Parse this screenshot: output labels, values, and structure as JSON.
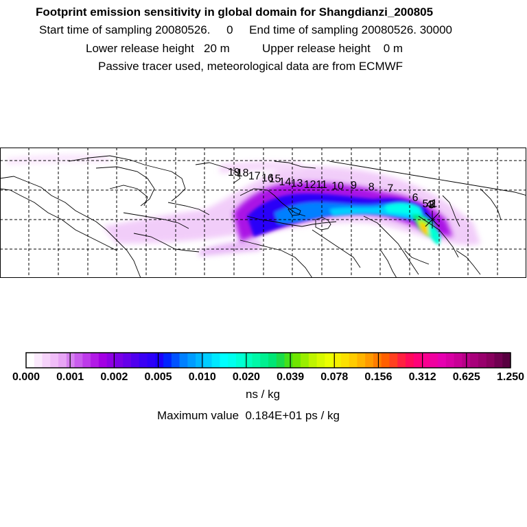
{
  "header": {
    "title": "Footprint emission sensitivity in global domain for Shangdianzi_200805",
    "line1": "Start time of sampling 20080526.     0     End time of sampling 20080526. 30000",
    "line2": "Lower release height   20 m          Upper release height    0 m",
    "line3": "Passive tracer used, meteorological data are from ECMWF"
  },
  "map": {
    "lon_range": [
      -180,
      180
    ],
    "lat_range": [
      -10,
      80
    ],
    "grid_lines": true,
    "grid_style": "dashed",
    "release_site": "Shangdianzi",
    "track_labels": [
      {
        "text": "1",
        "lon": 117.0,
        "lat": 39.0
      },
      {
        "text": "2",
        "lon": 116.0,
        "lat": 38.5
      },
      {
        "text": "3",
        "lon": 115.0,
        "lat": 38.0
      },
      {
        "text": "4",
        "lon": 113.5,
        "lat": 38.3
      },
      {
        "text": "5",
        "lon": 111.0,
        "lat": 38.8
      },
      {
        "text": "6",
        "lon": 104.0,
        "lat": 43.0
      },
      {
        "text": "7",
        "lon": 87.0,
        "lat": 49.5
      },
      {
        "text": "8",
        "lon": 74.0,
        "lat": 50.5
      },
      {
        "text": "9",
        "lon": 62.0,
        "lat": 51.5
      },
      {
        "text": "10",
        "lon": 51.0,
        "lat": 51.0
      },
      {
        "text": "11",
        "lon": 40.0,
        "lat": 52.0
      },
      {
        "text": "12",
        "lon": 32.0,
        "lat": 52.0
      },
      {
        "text": "13",
        "lon": 23.0,
        "lat": 53.0
      },
      {
        "text": "14",
        "lon": 15.0,
        "lat": 54.0
      },
      {
        "text": "15",
        "lon": 8.0,
        "lat": 56.0
      },
      {
        "text": "16",
        "lon": 3.0,
        "lat": 56.5
      },
      {
        "text": "17",
        "lon": -6.0,
        "lat": 58.0
      },
      {
        "text": "18",
        "lon": -14.0,
        "lat": 60.0
      },
      {
        "text": "19",
        "lon": -20.0,
        "lat": 60.5
      }
    ]
  },
  "colorbar": {
    "tick_labels": [
      "0.000",
      "0.001",
      "0.002",
      "0.005",
      "0.010",
      "0.020",
      "0.039",
      "0.078",
      "0.156",
      "0.312",
      "0.625",
      "1.250"
    ],
    "colors": [
      "#ffffff",
      "#fbeafd",
      "#f6d3fb",
      "#f0bdf8",
      "#e7a5f5",
      "#d680f0",
      "#c95ced",
      "#bd3aea",
      "#b21ae6",
      "#a300e3",
      "#8e00e3",
      "#7a00e6",
      "#6600ea",
      "#5000ee",
      "#3a00f4",
      "#2c00f8",
      "#1b00fc",
      "#0024ff",
      "#0052ff",
      "#0080ff",
      "#009cff",
      "#00b6ff",
      "#00ceff",
      "#00e8ff",
      "#00ffff",
      "#00ffee",
      "#00ffd5",
      "#00ffbe",
      "#00f8a8",
      "#00f090",
      "#00e676",
      "#1adb4a",
      "#44e01a",
      "#70e600",
      "#99ee00",
      "#bff400",
      "#d8fa00",
      "#ecff00",
      "#f5f000",
      "#fbe000",
      "#ffcc00",
      "#ffb400",
      "#ff9a00",
      "#ff7d00",
      "#ff6000",
      "#ff4020",
      "#ff2040",
      "#ff0a5a",
      "#ff0078",
      "#f80090",
      "#f000a0",
      "#e600b0",
      "#d800a4",
      "#c80096",
      "#b80088",
      "#a8007a",
      "#98006c",
      "#88005e",
      "#700050",
      "#580040"
    ]
  },
  "footer": {
    "unit": "ns / kg",
    "max_value": "Maximum value  0.184E+01 ps / kg"
  }
}
